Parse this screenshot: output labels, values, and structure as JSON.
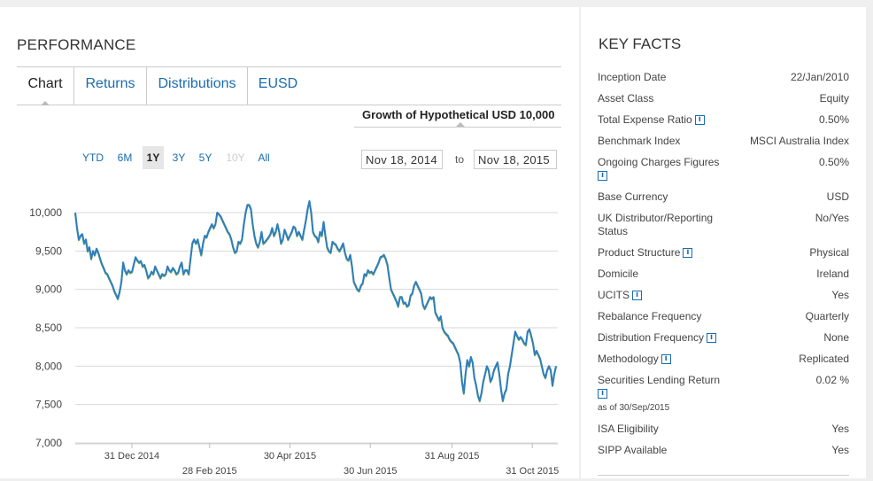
{
  "performance": {
    "title": "PERFORMANCE",
    "tabs": [
      "Chart",
      "Returns",
      "Distributions",
      "EUSD"
    ],
    "growth_label": "Growth of Hypothetical USD 10,000",
    "ranges": [
      "YTD",
      "6M",
      "1Y",
      "3Y",
      "5Y",
      "10Y",
      "All"
    ],
    "active_range": "1Y",
    "disabled_range": "10Y",
    "date_from": "Nov 18, 2014",
    "date_to_label": "to",
    "date_to": "Nov 18, 2015"
  },
  "chart_data": {
    "type": "line",
    "title": "Growth of Hypothetical USD 10,000",
    "x_start": "2014-11-18",
    "x_end": "2015-11-18",
    "ylim": [
      7000,
      10000
    ],
    "y_ticks": [
      "10,000",
      "9,500",
      "9,000",
      "8,500",
      "8,000",
      "7,500",
      "7,000"
    ],
    "y_tick_values": [
      10000,
      9500,
      9000,
      8500,
      8000,
      7500,
      7000
    ],
    "x_ticks": [
      {
        "label": "31 Dec 2014",
        "date": "2014-12-31"
      },
      {
        "label": "28 Feb 2015",
        "date": "2015-02-28"
      },
      {
        "label": "30 Apr 2015",
        "date": "2015-04-30"
      },
      {
        "label": "30 Jun 2015",
        "date": "2015-06-30"
      },
      {
        "label": "31 Aug 2015",
        "date": "2015-08-31"
      },
      {
        "label": "31 Oct 2015",
        "date": "2015-10-31"
      }
    ],
    "series": [
      {
        "name": "Growth of Hypothetical USD 10,000",
        "color": "#2f7ec0",
        "shadow_color": "#7ab04a",
        "values": [
          10000,
          9800,
          9650,
          9700,
          9720,
          9600,
          9650,
          9500,
          9550,
          9400,
          9500,
          9450,
          9530,
          9480,
          9400,
          9330,
          9280,
          9220,
          9200,
          9150,
          9100,
          9050,
          8980,
          8930,
          8880,
          8970,
          9100,
          9350,
          9250,
          9200,
          9250,
          9220,
          9230,
          9330,
          9420,
          9380,
          9350,
          9370,
          9300,
          9320,
          9250,
          9150,
          9180,
          9230,
          9200,
          9300,
          9250,
          9200,
          9150,
          9200,
          9180,
          9200,
          9300,
          9250,
          9230,
          9280,
          9250,
          9200,
          9220,
          9300,
          9350,
          9200,
          9250,
          9250,
          9200,
          9400,
          9600,
          9650,
          9600,
          9650,
          9550,
          9450,
          9600,
          9700,
          9680,
          9750,
          9800,
          9850,
          9800,
          9850,
          10000,
          9980,
          9950,
          9900,
          9850,
          9800,
          9750,
          9720,
          9650,
          9550,
          9480,
          9500,
          9620,
          9600,
          9650,
          9850,
          10000,
          10100,
          10100,
          10050,
          9850,
          9700,
          9600,
          9550,
          9620,
          9750,
          9600,
          9620,
          9650,
          9680,
          9720,
          9800,
          9700,
          9750,
          9850,
          9750,
          9600,
          9650,
          9780,
          9720,
          9650,
          9700,
          9750,
          9820,
          9800,
          9700,
          9750,
          9700,
          9650,
          9780,
          9900,
          10050,
          10150,
          10000,
          9750,
          9700,
          9680,
          9620,
          9750,
          9700,
          9880,
          9700,
          9550,
          9500,
          9480,
          9620,
          9600,
          9580,
          9530,
          9500,
          9550,
          9600,
          9480,
          9400,
          9380,
          9450,
          9300,
          9100,
          9050,
          9000,
          8980,
          9050,
          9080,
          9200,
          9180,
          9250,
          9220,
          9230,
          9200,
          9250,
          9300,
          9350,
          9420,
          9430,
          9450,
          9400,
          9320,
          9150,
          9000,
          8950,
          8900,
          8850,
          8780,
          8900,
          8900,
          8820,
          8830,
          8780,
          8800,
          8920,
          8950,
          9050,
          9100,
          9050,
          9000,
          8950,
          8800,
          8750,
          8800,
          8850,
          8900,
          8880,
          8900,
          8700,
          8650,
          8600,
          8650,
          8500,
          8450,
          8420,
          8400,
          8350,
          8320,
          8300,
          8250,
          8200,
          8150,
          8050,
          7800,
          7650,
          7900,
          8080,
          8000,
          8120,
          8050,
          7850,
          7750,
          7620,
          7550,
          7650,
          7800,
          7900,
          8000,
          7950,
          7800,
          7850,
          7950,
          8000,
          8050,
          7900,
          7700,
          7550,
          7650,
          7700,
          7900,
          8000,
          8150,
          8300,
          8450,
          8400,
          8350,
          8380,
          8350,
          8300,
          8280,
          8450,
          8480,
          8400,
          8300,
          8150,
          8200,
          8150,
          8100,
          8000,
          7900,
          7850,
          7950,
          8000,
          7950,
          7750,
          7900,
          8000
        ]
      }
    ]
  },
  "key_facts": {
    "title": "KEY FACTS",
    "rows": [
      {
        "label": "Inception Date",
        "value": "22/Jan/2010"
      },
      {
        "label": "Asset Class",
        "value": "Equity"
      },
      {
        "label": "Total Expense Ratio",
        "value": "0.50%"
      },
      {
        "label": "Benchmark Index",
        "value": "MSCI Australia Index"
      },
      {
        "label": "Ongoing Charges Figures",
        "value": "0.50%"
      },
      {
        "label": "Base Currency",
        "value": "USD"
      },
      {
        "label": "UK Distributor/Reporting Status",
        "value": "No/Yes"
      },
      {
        "label": "Product Structure",
        "value": "Physical"
      },
      {
        "label": "Domicile",
        "value": "Ireland"
      },
      {
        "label": "UCITS",
        "value": "Yes"
      },
      {
        "label": "Rebalance Frequency",
        "value": "Quarterly"
      },
      {
        "label": "Distribution Frequency",
        "value": "None"
      },
      {
        "label": "Methodology",
        "value": "Replicated"
      },
      {
        "label": "Securities Lending Return",
        "value": "0.02 %",
        "sub": "as of 30/Sep/2015"
      },
      {
        "label": "ISA Eligibility",
        "value": "Yes"
      },
      {
        "label": "SIPP Available",
        "value": "Yes"
      }
    ],
    "info_icon_glyph": "i"
  }
}
